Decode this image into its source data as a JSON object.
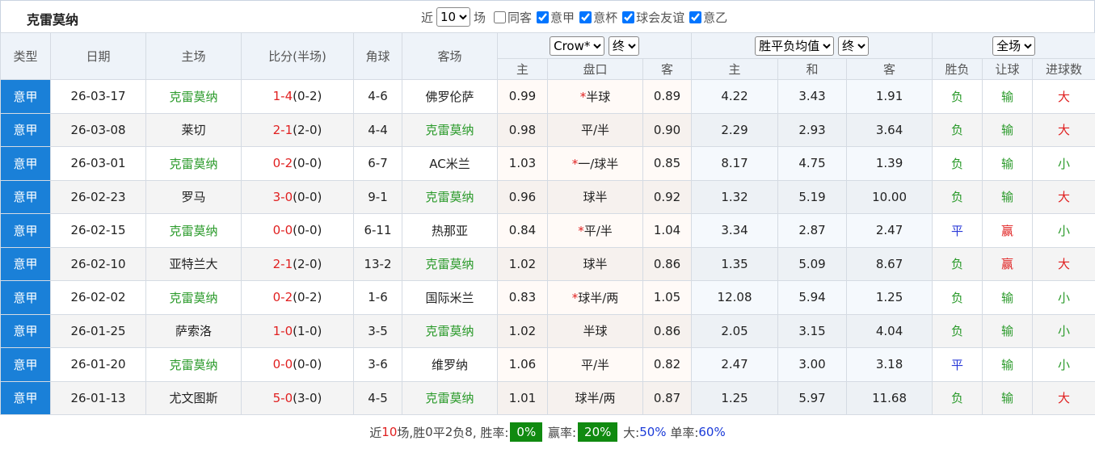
{
  "header": {
    "title": "克雷莫纳",
    "filters": {
      "recent_prefix": "近",
      "recent": "10",
      "recent_suffix": "场",
      "options": [
        {
          "label": "同客",
          "checked": false
        },
        {
          "label": "意甲",
          "checked": true
        },
        {
          "label": "意杯",
          "checked": true
        },
        {
          "label": "球会友谊",
          "checked": true
        },
        {
          "label": "意乙",
          "checked": true
        }
      ]
    }
  },
  "table": {
    "columns": [
      "类型",
      "日期",
      "主场",
      "比分(半场)",
      "角球",
      "客场"
    ],
    "handicap_selects": [
      "Crow*",
      "终"
    ],
    "odds_selects": [
      "胜平负均值",
      "终"
    ],
    "result_select": "全场",
    "subcolumns": [
      "主",
      "盘口",
      "客",
      "主",
      "和",
      "客",
      "胜负",
      "让球",
      "进球数"
    ],
    "rows": [
      {
        "type": "意甲",
        "date": "26-03-17",
        "home": "克雷莫纳",
        "score": "1-4",
        "half": "(0-2)",
        "corners": "4-6",
        "away": "佛罗伦萨",
        "ah_home": "0.99",
        "ah_mark": "*",
        "ah_line": "半球",
        "ah_away": "0.89",
        "win": "4.22",
        "draw": "3.43",
        "lose": "1.91",
        "results": [
          "负",
          "输",
          "大"
        ],
        "result_colors": [
          "#2a9a2a",
          "#2a9a2a",
          "#e02020"
        ]
      },
      {
        "type": "意甲",
        "date": "26-03-08",
        "home": "莱切",
        "score": "2-1",
        "half": "(2-0)",
        "corners": "4-4",
        "away": "克雷莫纳",
        "ah_home": "0.98",
        "ah_line": "平/半",
        "ah_away": "0.90",
        "win": "2.29",
        "draw": "2.93",
        "lose": "3.64",
        "results": [
          "负",
          "输",
          "大"
        ],
        "result_colors": [
          "#2a9a2a",
          "#2a9a2a",
          "#e02020"
        ]
      },
      {
        "type": "意甲",
        "date": "26-03-01",
        "home": "克雷莫纳",
        "score": "0-2",
        "half": "(0-0)",
        "corners": "6-7",
        "away": "AC米兰",
        "ah_home": "1.03",
        "ah_mark": "*",
        "ah_line": "一/球半",
        "ah_away": "0.85",
        "win": "8.17",
        "draw": "4.75",
        "lose": "1.39",
        "results": [
          "负",
          "输",
          "小"
        ],
        "result_colors": [
          "#2a9a2a",
          "#2a9a2a",
          "#2a9a2a"
        ]
      },
      {
        "type": "意甲",
        "date": "26-02-23",
        "home": "罗马",
        "score": "3-0",
        "half": "(0-0)",
        "corners": "9-1",
        "away": "克雷莫纳",
        "ah_home": "0.96",
        "ah_line": "球半",
        "ah_away": "0.92",
        "win": "1.32",
        "draw": "5.19",
        "lose": "10.00",
        "results": [
          "负",
          "输",
          "大"
        ],
        "result_colors": [
          "#2a9a2a",
          "#2a9a2a",
          "#e02020"
        ]
      },
      {
        "type": "意甲",
        "date": "26-02-15",
        "home": "克雷莫纳",
        "score": "0-0",
        "half": "(0-0)",
        "corners": "6-11",
        "away": "热那亚",
        "ah_home": "0.84",
        "ah_mark": "*",
        "ah_line": "平/半",
        "ah_away": "1.04",
        "win": "3.34",
        "draw": "2.87",
        "lose": "2.47",
        "results": [
          "平",
          "赢",
          "小"
        ],
        "result_colors": [
          "#2a3ad8",
          "#e02020",
          "#2a9a2a"
        ]
      },
      {
        "type": "意甲",
        "date": "26-02-10",
        "home": "亚特兰大",
        "score": "2-1",
        "half": "(2-0)",
        "corners": "13-2",
        "away": "克雷莫纳",
        "ah_home": "1.02",
        "ah_line": "球半",
        "ah_away": "0.86",
        "win": "1.35",
        "draw": "5.09",
        "lose": "8.67",
        "results": [
          "负",
          "赢",
          "大"
        ],
        "result_colors": [
          "#2a9a2a",
          "#e02020",
          "#e02020"
        ]
      },
      {
        "type": "意甲",
        "date": "26-02-02",
        "home": "克雷莫纳",
        "score": "0-2",
        "half": "(0-2)",
        "corners": "1-6",
        "away": "国际米兰",
        "ah_home": "0.83",
        "ah_mark": "*",
        "ah_line": "球半/两",
        "ah_away": "1.05",
        "win": "12.08",
        "draw": "5.94",
        "lose": "1.25",
        "results": [
          "负",
          "输",
          "小"
        ],
        "result_colors": [
          "#2a9a2a",
          "#2a9a2a",
          "#2a9a2a"
        ]
      },
      {
        "type": "意甲",
        "date": "26-01-25",
        "home": "萨索洛",
        "score": "1-0",
        "half": "(1-0)",
        "corners": "3-5",
        "away": "克雷莫纳",
        "ah_home": "1.02",
        "ah_line": "半球",
        "ah_away": "0.86",
        "win": "2.05",
        "draw": "3.15",
        "lose": "4.04",
        "results": [
          "负",
          "输",
          "小"
        ],
        "result_colors": [
          "#2a9a2a",
          "#2a9a2a",
          "#2a9a2a"
        ]
      },
      {
        "type": "意甲",
        "date": "26-01-20",
        "home": "克雷莫纳",
        "score": "0-0",
        "half": "(0-0)",
        "corners": "3-6",
        "away": "维罗纳",
        "ah_home": "1.06",
        "ah_line": "平/半",
        "ah_away": "0.82",
        "win": "2.47",
        "draw": "3.00",
        "lose": "3.18",
        "results": [
          "平",
          "输",
          "小"
        ],
        "result_colors": [
          "#2a3ad8",
          "#2a9a2a",
          "#2a9a2a"
        ]
      },
      {
        "type": "意甲",
        "date": "26-01-13",
        "home": "尤文图斯",
        "score": "5-0",
        "half": "(3-0)",
        "corners": "4-5",
        "away": "克雷莫纳",
        "ah_home": "1.01",
        "ah_line": "球半/两",
        "ah_away": "0.87",
        "win": "1.25",
        "draw": "5.97",
        "lose": "11.68",
        "results": [
          "负",
          "输",
          "大"
        ],
        "result_colors": [
          "#2a9a2a",
          "#2a9a2a",
          "#e02020"
        ]
      }
    ]
  },
  "footer": {
    "parts": [
      "近",
      "10",
      "场,胜",
      "0",
      "平",
      "2",
      "负",
      "8",
      ", 胜率:",
      "0%",
      " 赢率:",
      "20%",
      " 大:",
      "50%",
      " 单率:",
      "60%"
    ]
  }
}
